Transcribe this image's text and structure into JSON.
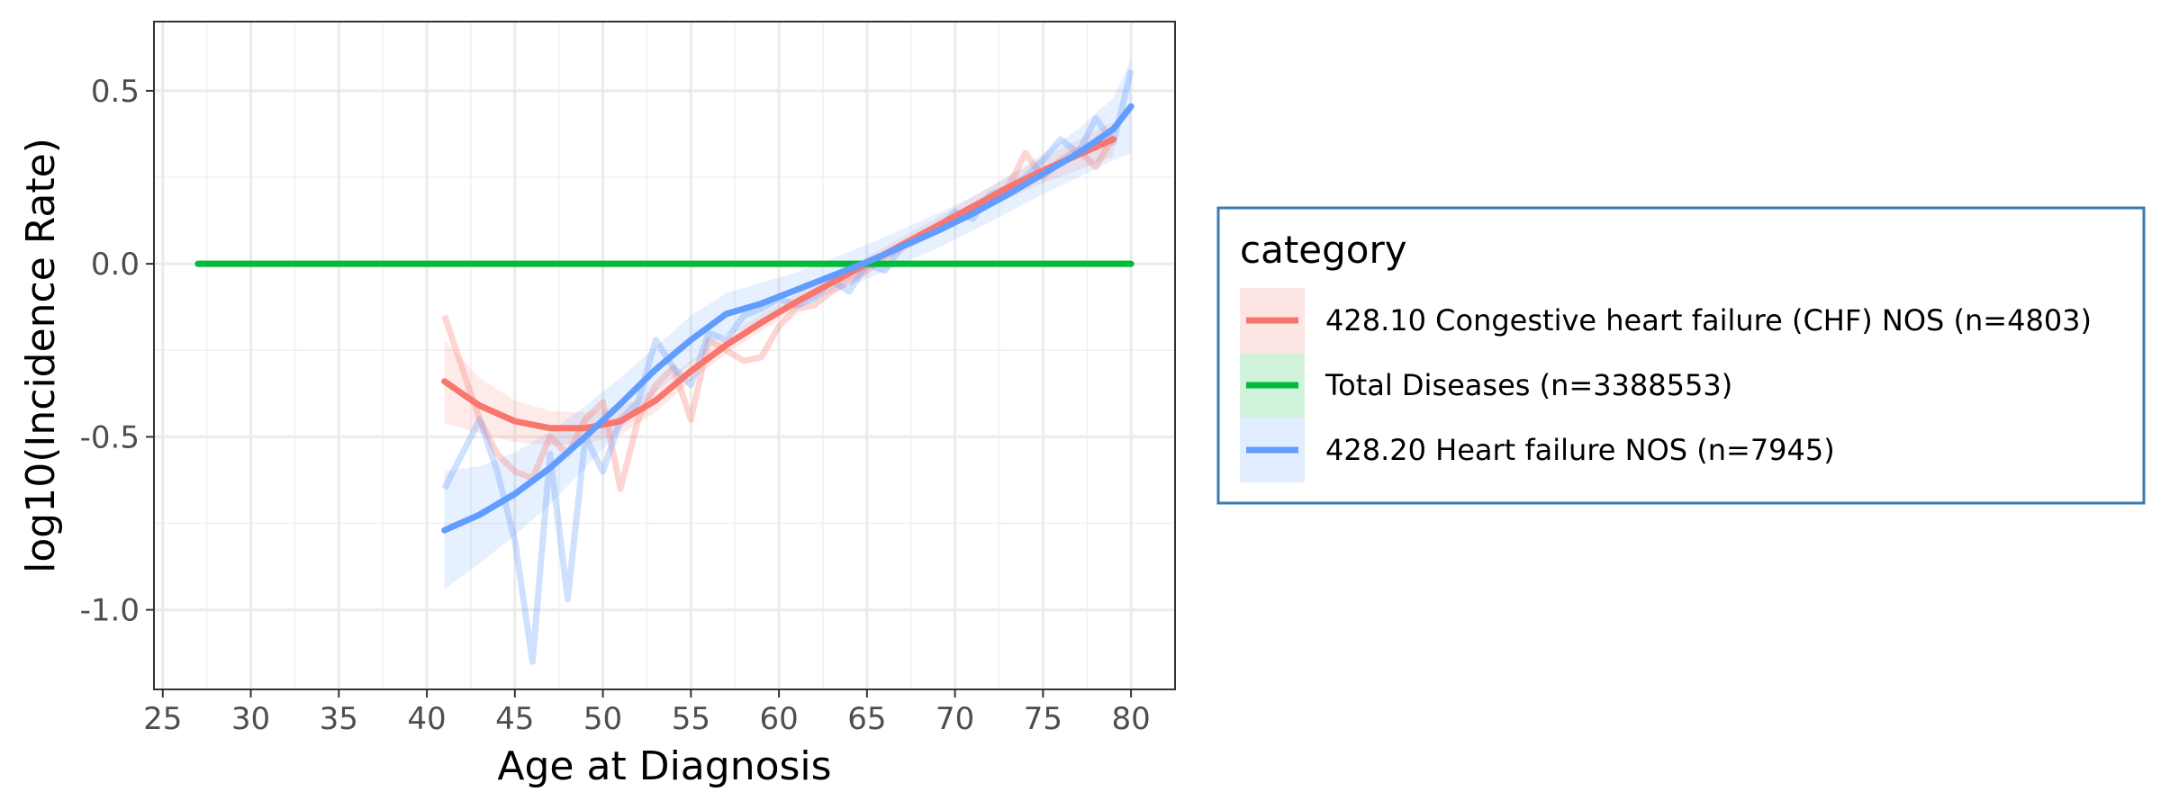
{
  "chart_data": {
    "type": "line",
    "xlabel": "Age at Diagnosis",
    "ylabel": "log10(Incidence Rate)",
    "xlim": [
      24.5,
      82.5
    ],
    "ylim": [
      -1.23,
      0.7
    ],
    "x_ticks": [
      25,
      30,
      35,
      40,
      45,
      50,
      55,
      60,
      65,
      70,
      75,
      80
    ],
    "x_tick_labels": [
      "25",
      "30",
      "35",
      "40",
      "45",
      "50",
      "55",
      "60",
      "65",
      "70",
      "75",
      "80"
    ],
    "y_ticks": [
      -1.0,
      -0.5,
      0.0,
      0.5
    ],
    "y_tick_labels": [
      "-1.0",
      "-0.5",
      "0.0",
      "0.5"
    ],
    "grid": true,
    "legend": {
      "title": "category",
      "placement": "right",
      "entries": [
        {
          "label": "428.10 Congestive heart failure (CHF) NOS (n=4803)",
          "color": "#F8766D"
        },
        {
          "label": "Total Diseases (n=3388553)",
          "color": "#00BA38"
        },
        {
          "label": "428.20 Heart failure NOS (n=7945)",
          "color": "#619CFF"
        }
      ]
    },
    "series": [
      {
        "name": "428.10 Congestive heart failure (CHF) NOS (n=4803)",
        "color": "#F8766D",
        "raw": {
          "x": [
            41,
            42,
            43,
            44,
            45,
            46,
            47,
            48,
            49,
            50,
            51,
            52,
            53,
            54,
            55,
            56,
            57,
            58,
            59,
            60,
            61,
            62,
            63,
            64,
            65,
            66,
            67,
            68,
            69,
            70,
            71,
            72,
            73,
            74,
            75,
            76,
            77,
            78,
            79
          ],
          "y": [
            -0.15,
            -0.3,
            -0.45,
            -0.55,
            -0.6,
            -0.62,
            -0.5,
            -0.55,
            -0.45,
            -0.4,
            -0.65,
            -0.45,
            -0.35,
            -0.3,
            -0.45,
            -0.22,
            -0.25,
            -0.28,
            -0.27,
            -0.18,
            -0.13,
            -0.12,
            -0.08,
            -0.05,
            -0.02,
            0.02,
            0.05,
            0.08,
            0.1,
            0.12,
            0.15,
            0.18,
            0.22,
            0.32,
            0.25,
            0.3,
            0.33,
            0.28,
            0.37
          ]
        },
        "smooth": {
          "x": [
            41,
            43,
            45,
            47,
            49,
            51,
            53,
            55,
            57,
            59,
            61,
            63,
            65,
            67,
            69,
            71,
            73,
            75,
            77,
            79
          ],
          "y": [
            -0.34,
            -0.41,
            -0.455,
            -0.475,
            -0.475,
            -0.455,
            -0.395,
            -0.31,
            -0.235,
            -0.17,
            -0.11,
            -0.055,
            0.0,
            0.055,
            0.11,
            0.165,
            0.22,
            0.27,
            0.315,
            0.36
          ],
          "se_upper": [
            -0.22,
            -0.33,
            -0.395,
            -0.425,
            -0.43,
            -0.415,
            -0.36,
            -0.28,
            -0.21,
            -0.145,
            -0.088,
            -0.035,
            0.02,
            0.077,
            0.134,
            0.192,
            0.252,
            0.306,
            0.359,
            0.41
          ],
          "se_lower": [
            -0.46,
            -0.49,
            -0.515,
            -0.525,
            -0.52,
            -0.495,
            -0.43,
            -0.34,
            -0.26,
            -0.195,
            -0.132,
            -0.075,
            -0.02,
            0.033,
            0.086,
            0.138,
            0.188,
            0.234,
            0.271,
            0.31
          ]
        }
      },
      {
        "name": "Total Diseases (n=3388553)",
        "color": "#00BA38",
        "raw": {
          "x": [
            27,
            80
          ],
          "y": [
            0.0,
            0.0
          ]
        },
        "smooth": {
          "x": [
            27,
            80
          ],
          "y": [
            0.0,
            0.0
          ],
          "se_upper": [
            0.0,
            0.0
          ],
          "se_lower": [
            0.0,
            0.0
          ]
        }
      },
      {
        "name": "428.20 Heart failure NOS (n=7945)",
        "color": "#619CFF",
        "raw": {
          "x": [
            41,
            42,
            43,
            44,
            45,
            46,
            47,
            48,
            49,
            50,
            51,
            52,
            53,
            54,
            55,
            56,
            57,
            58,
            59,
            60,
            61,
            62,
            63,
            64,
            65,
            66,
            67,
            68,
            69,
            70,
            71,
            72,
            73,
            74,
            75,
            76,
            77,
            78,
            79,
            80
          ],
          "y": [
            -0.65,
            -0.55,
            -0.45,
            -0.6,
            -0.8,
            -1.15,
            -0.55,
            -0.97,
            -0.5,
            -0.6,
            -0.45,
            -0.4,
            -0.22,
            -0.3,
            -0.35,
            -0.2,
            -0.22,
            -0.15,
            -0.13,
            -0.1,
            -0.12,
            -0.1,
            -0.05,
            -0.08,
            0.0,
            -0.02,
            0.05,
            0.08,
            0.1,
            0.15,
            0.13,
            0.2,
            0.22,
            0.25,
            0.3,
            0.36,
            0.32,
            0.42,
            0.35,
            0.56
          ]
        },
        "smooth": {
          "x": [
            41,
            43,
            45,
            47,
            49,
            51,
            53,
            55,
            57,
            59,
            61,
            63,
            65,
            67,
            69,
            71,
            73,
            75,
            77,
            79,
            80
          ],
          "y": [
            -0.77,
            -0.725,
            -0.665,
            -0.59,
            -0.5,
            -0.405,
            -0.305,
            -0.22,
            -0.145,
            -0.115,
            -0.075,
            -0.035,
            0.005,
            0.05,
            0.095,
            0.145,
            0.2,
            0.26,
            0.32,
            0.39,
            0.455
          ],
          "se_upper": [
            -0.6,
            -0.585,
            -0.545,
            -0.485,
            -0.41,
            -0.33,
            -0.24,
            -0.15,
            -0.085,
            -0.055,
            -0.025,
            0.015,
            0.055,
            0.1,
            0.145,
            0.195,
            0.252,
            0.318,
            0.39,
            0.48,
            0.59
          ],
          "se_lower": [
            -0.94,
            -0.865,
            -0.785,
            -0.695,
            -0.59,
            -0.48,
            -0.37,
            -0.29,
            -0.205,
            -0.175,
            -0.125,
            -0.085,
            -0.045,
            0.0,
            0.045,
            0.095,
            0.148,
            0.202,
            0.25,
            0.3,
            0.32
          ]
        }
      }
    ]
  }
}
